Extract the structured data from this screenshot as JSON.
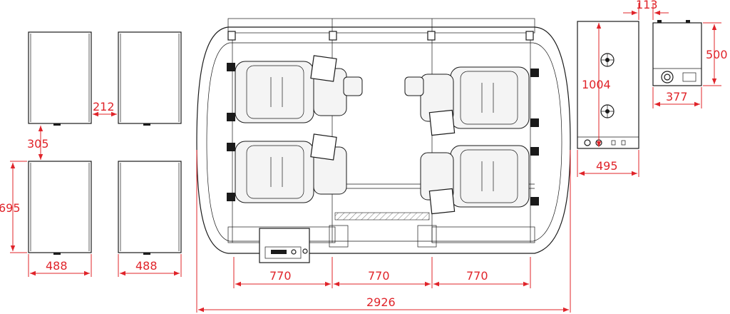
{
  "dimensions": {
    "cabinet_gap_horizontal": "212",
    "cabinet_gap_vertical": "305",
    "cabinet_height": "695",
    "cabinet_width_left": "488",
    "cabinet_width_right": "488",
    "seat_pitch_1": "770",
    "seat_pitch_2": "770",
    "seat_pitch_3": "770",
    "platform_total_width": "2926",
    "control_box_height": "1004",
    "control_box_width": "495",
    "side_unit_offset": "113",
    "side_unit_height": "500",
    "side_unit_width": "377"
  },
  "colors": {
    "line": "#1a1a1a",
    "dimension": "#e0242a"
  },
  "icons": {
    "fan": "fan-icon",
    "knob": "knob-icon"
  }
}
